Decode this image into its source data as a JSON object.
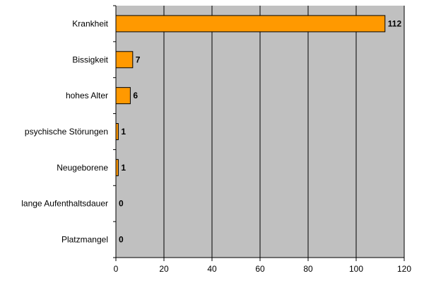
{
  "chart_data": {
    "type": "bar",
    "orientation": "horizontal",
    "title": "",
    "xlabel": "",
    "ylabel": "",
    "categories": [
      "Krankheit",
      "Bissigkeit",
      "hohes Alter",
      "psychische Störungen",
      "Neugeborene",
      "lange Aufenthaltsdauer",
      "Platzmangel"
    ],
    "values": [
      112,
      7,
      6,
      1,
      1,
      0,
      0
    ],
    "xlim": [
      0,
      120
    ],
    "xticks": [
      0,
      20,
      40,
      60,
      80,
      100,
      120
    ],
    "grid": "vertical",
    "legend": "none",
    "colors": {
      "bar": "#FF9900",
      "bar_stroke": "#000000",
      "plot_background": "#C0C0C0",
      "grid": "#000000"
    }
  }
}
